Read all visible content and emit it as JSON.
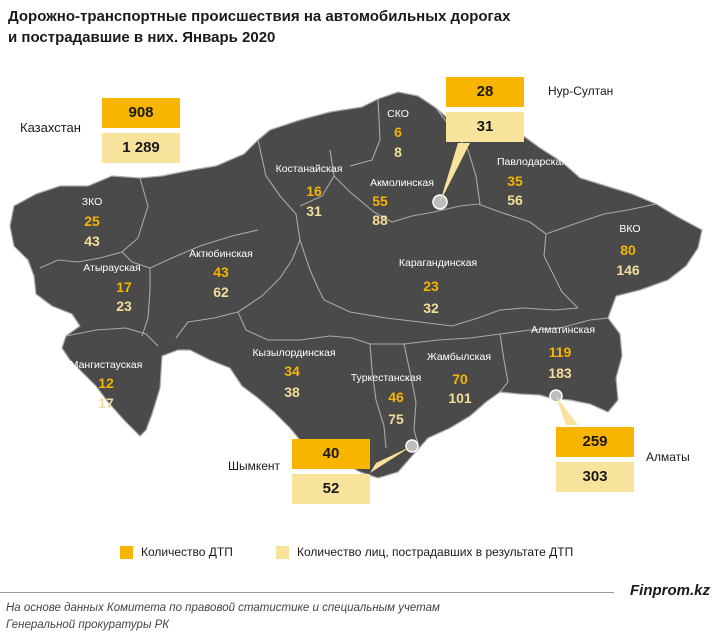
{
  "title": {
    "line1": "Дорожно-транспортные происшествия на автомобильных дорогах",
    "line2": "и пострадавшие в них. Январь 2020"
  },
  "kazakhstan": {
    "name": "Казахстан",
    "accidents": "908",
    "injured": "1 289"
  },
  "regions": [
    {
      "id": "zko",
      "name": "ЗКО",
      "accidents": "25",
      "injured": "43"
    },
    {
      "id": "atyrau",
      "name": "Атырауская",
      "accidents": "17",
      "injured": "23"
    },
    {
      "id": "mangistau",
      "name": "Мангистауская",
      "accidents": "12",
      "injured": "17"
    },
    {
      "id": "aktobe",
      "name": "Актюбинская",
      "accidents": "43",
      "injured": "62"
    },
    {
      "id": "kostanay",
      "name": "Костанайская",
      "accidents": "16",
      "injured": "31"
    },
    {
      "id": "sko",
      "name": "СКО",
      "accidents": "6",
      "injured": "8"
    },
    {
      "id": "akmola",
      "name": "Акмолинская",
      "accidents": "55",
      "injured": "88"
    },
    {
      "id": "pavlodar",
      "name": "Павлодарская",
      "accidents": "35",
      "injured": "56"
    },
    {
      "id": "vko",
      "name": "ВКО",
      "accidents": "80",
      "injured": "146"
    },
    {
      "id": "karaganda",
      "name": "Карагандинская",
      "accidents": "23",
      "injured": "32"
    },
    {
      "id": "kyzylorda",
      "name": "Кызылординская",
      "accidents": "34",
      "injured": "38"
    },
    {
      "id": "turkestan",
      "name": "Туркестанская",
      "accidents": "46",
      "injured": "75"
    },
    {
      "id": "zhambyl",
      "name": "Жамбылская",
      "accidents": "70",
      "injured": "101"
    },
    {
      "id": "almaty_reg",
      "name": "Алматинская",
      "accidents": "119",
      "injured": "183"
    }
  ],
  "cities": [
    {
      "id": "nur-sultan",
      "name": "Нур-Султан",
      "accidents": "28",
      "injured": "31"
    },
    {
      "id": "shymkent",
      "name": "Шымкент",
      "accidents": "40",
      "injured": "52"
    },
    {
      "id": "almaty",
      "name": "Алматы",
      "accidents": "259",
      "injured": "303"
    }
  ],
  "legend": {
    "accidents": "Количество ДТП",
    "injured": "Количество лиц, пострадавших в результате ДТП"
  },
  "colors": {
    "map_fill": "#4a4a4a",
    "border": "#a8a8a8",
    "accidents": "#f7b500",
    "injured": "#f8e39c"
  },
  "brand": "Finprom.kz",
  "source": {
    "line1": "На основе данных Комитета по правовой статистике и специальным учетам",
    "line2": "Генеральной прокуратуры РК"
  }
}
